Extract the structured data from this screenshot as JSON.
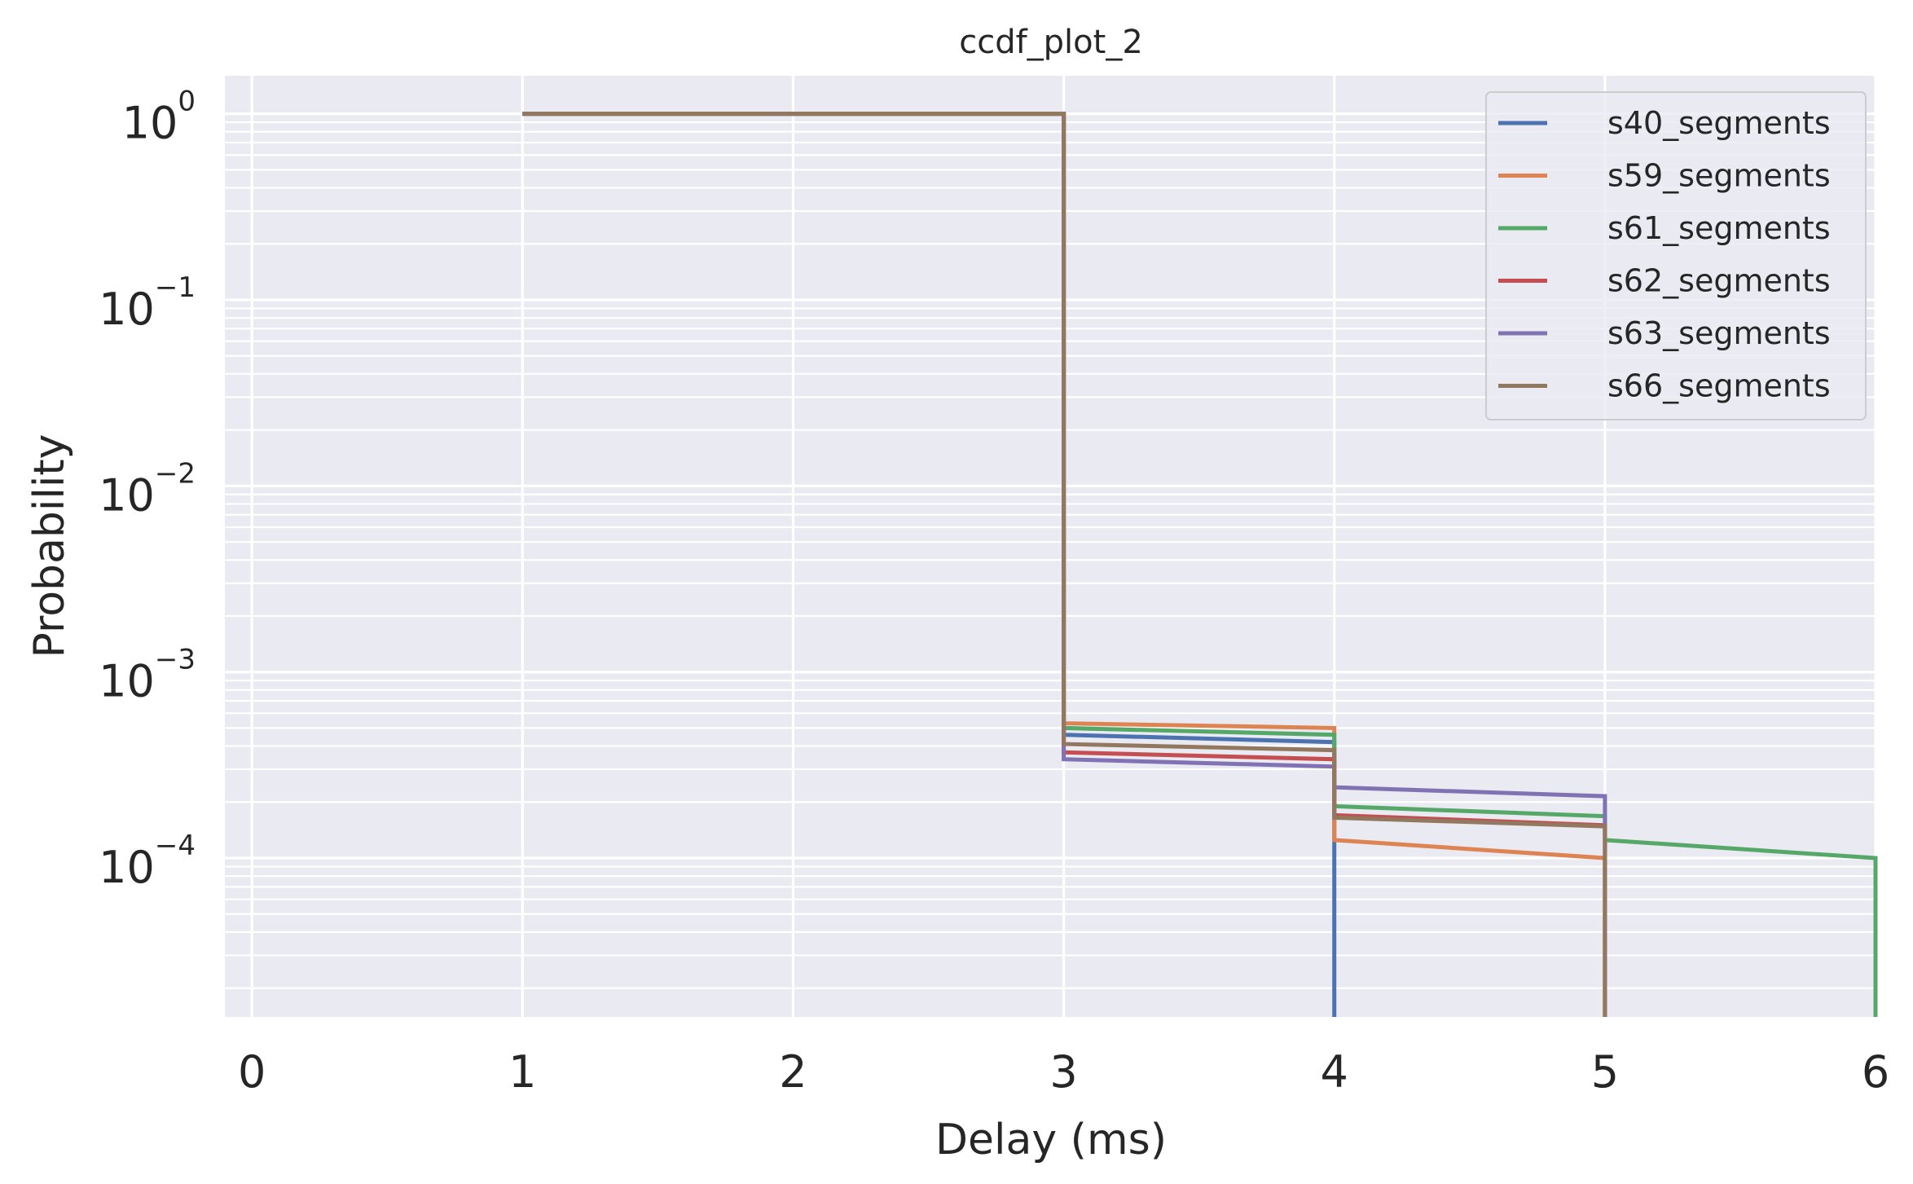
{
  "chart_data": {
    "type": "line",
    "title": "ccdf_plot_2",
    "xlabel": "Delay (ms)",
    "ylabel": "Probability",
    "xlim": [
      -0.1,
      6
    ],
    "ylim": [
      1.4e-05,
      1.6
    ],
    "yscale": "log",
    "grid": true,
    "legend_position": "top-right",
    "x_ticks": [
      {
        "value": 0,
        "label": "0"
      },
      {
        "value": 1,
        "label": "1"
      },
      {
        "value": 2,
        "label": "2"
      },
      {
        "value": 3,
        "label": "3"
      },
      {
        "value": 4,
        "label": "4"
      },
      {
        "value": 5,
        "label": "5"
      },
      {
        "value": 6,
        "label": "6"
      }
    ],
    "y_ticks": [
      {
        "value": 1,
        "base": "10",
        "exp": "0"
      },
      {
        "value": 0.1,
        "base": "10",
        "exp": "−1"
      },
      {
        "value": 0.01,
        "base": "10",
        "exp": "−2"
      },
      {
        "value": 0.001,
        "base": "10",
        "exp": "−3"
      },
      {
        "value": 0.0001,
        "base": "10",
        "exp": "−4"
      }
    ],
    "series": [
      {
        "name": "s40_segments",
        "color": "#4c72b0",
        "points": [
          [
            1,
            1
          ],
          [
            3,
            1
          ],
          [
            3,
            0.00046
          ],
          [
            4,
            0.00042
          ],
          [
            4,
            1.4e-05
          ]
        ]
      },
      {
        "name": "s59_segments",
        "color": "#dd8452",
        "points": [
          [
            1,
            1
          ],
          [
            3,
            1
          ],
          [
            3,
            0.00053
          ],
          [
            4,
            0.0005
          ],
          [
            4,
            0.000125
          ],
          [
            5,
            0.0001
          ],
          [
            5,
            1.4e-05
          ]
        ]
      },
      {
        "name": "s61_segments",
        "color": "#55a868",
        "points": [
          [
            1,
            1
          ],
          [
            3,
            1
          ],
          [
            3,
            0.0005
          ],
          [
            4,
            0.00046
          ],
          [
            4,
            0.00019
          ],
          [
            5,
            0.000168
          ],
          [
            5,
            0.000125
          ],
          [
            6,
            0.0001
          ],
          [
            6,
            1.4e-05
          ]
        ]
      },
      {
        "name": "s62_segments",
        "color": "#c44e52",
        "points": [
          [
            1,
            1
          ],
          [
            3,
            1
          ],
          [
            3,
            0.00037
          ],
          [
            4,
            0.00034
          ],
          [
            4,
            0.00017
          ],
          [
            5,
            0.00015
          ],
          [
            5,
            1.4e-05
          ]
        ]
      },
      {
        "name": "s63_segments",
        "color": "#8172b3",
        "points": [
          [
            1,
            1
          ],
          [
            3,
            1
          ],
          [
            3,
            0.00034
          ],
          [
            4,
            0.00031
          ],
          [
            4,
            0.00024
          ],
          [
            5,
            0.000215
          ],
          [
            5,
            1.4e-05
          ]
        ]
      },
      {
        "name": "s66_segments",
        "color": "#937860",
        "points": [
          [
            1,
            1
          ],
          [
            3,
            1
          ],
          [
            3,
            0.00041
          ],
          [
            4,
            0.00038
          ],
          [
            4,
            0.000165
          ],
          [
            5,
            0.000148
          ],
          [
            5,
            1.4e-05
          ]
        ]
      }
    ]
  }
}
